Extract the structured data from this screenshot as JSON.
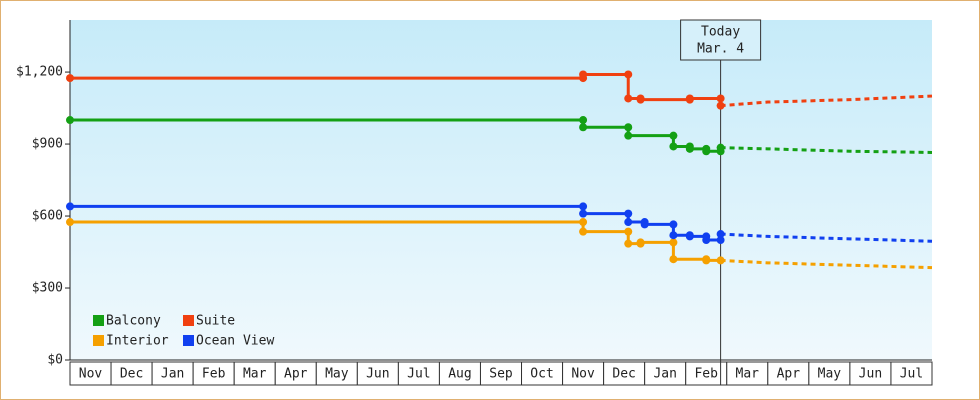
{
  "chart_data": {
    "type": "step-line",
    "categories": [
      "Nov",
      "Dec",
      "Jan",
      "Feb",
      "Mar",
      "Apr",
      "May",
      "Jun",
      "Jul",
      "Aug",
      "Sep",
      "Oct",
      "Nov",
      "Dec",
      "Jan",
      "Feb",
      "Mar",
      "Apr",
      "May",
      "Jun",
      "Jul"
    ],
    "xlim": [
      0,
      21
    ],
    "ylim": [
      0,
      1417
    ],
    "yticks": [
      {
        "value": 0,
        "label": "$0"
      },
      {
        "value": 300,
        "label": "$300"
      },
      {
        "value": 600,
        "label": "$600"
      },
      {
        "value": 900,
        "label": "$900"
      },
      {
        "value": 1200,
        "label": "$1,200"
      }
    ],
    "legend": "bottom-left",
    "annotation": {
      "x": 15.85,
      "lines": [
        "Today",
        "Mar. 4"
      ]
    },
    "series": [
      {
        "name": "Balcony",
        "color": "#14a014",
        "x": [
          0,
          12.5,
          12.5,
          13.6,
          13.6,
          14.7,
          14.7,
          15.1,
          15.1,
          15.5,
          15.5,
          15.85,
          15.85
        ],
        "values": [
          1000,
          1000,
          970,
          970,
          935,
          935,
          890,
          890,
          880,
          880,
          870,
          870,
          885
        ],
        "forecast_x": [
          15.85,
          17,
          19,
          21
        ],
        "forecast_values": [
          885,
          880,
          870,
          865
        ]
      },
      {
        "name": "Suite",
        "color": "#f04010",
        "x": [
          0,
          12.5,
          12.5,
          13.6,
          13.6,
          13.9,
          13.9,
          15.1,
          15.1,
          15.85,
          15.85
        ],
        "values": [
          1175,
          1175,
          1190,
          1190,
          1090,
          1090,
          1085,
          1085,
          1090,
          1090,
          1060
        ],
        "forecast_x": [
          15.85,
          17,
          19,
          21
        ],
        "forecast_values": [
          1060,
          1075,
          1085,
          1100
        ]
      },
      {
        "name": "Interior",
        "color": "#f5a000",
        "x": [
          0,
          12.5,
          12.5,
          13.6,
          13.6,
          13.9,
          13.9,
          14.7,
          14.7,
          15.5,
          15.5,
          15.85
        ],
        "values": [
          575,
          575,
          535,
          535,
          485,
          485,
          490,
          490,
          420,
          420,
          415,
          415
        ],
        "forecast_x": [
          15.85,
          17,
          19,
          21
        ],
        "forecast_values": [
          415,
          405,
          395,
          385
        ]
      },
      {
        "name": "Ocean View",
        "color": "#1040f0",
        "x": [
          0,
          12.5,
          12.5,
          13.6,
          13.6,
          14.0,
          14.0,
          14.7,
          14.7,
          15.1,
          15.1,
          15.5,
          15.5,
          15.85,
          15.85
        ],
        "values": [
          640,
          640,
          610,
          610,
          575,
          575,
          565,
          565,
          520,
          520,
          515,
          515,
          500,
          500,
          525
        ],
        "forecast_x": [
          15.85,
          17,
          19,
          21
        ],
        "forecast_values": [
          525,
          515,
          505,
          495
        ]
      }
    ]
  }
}
